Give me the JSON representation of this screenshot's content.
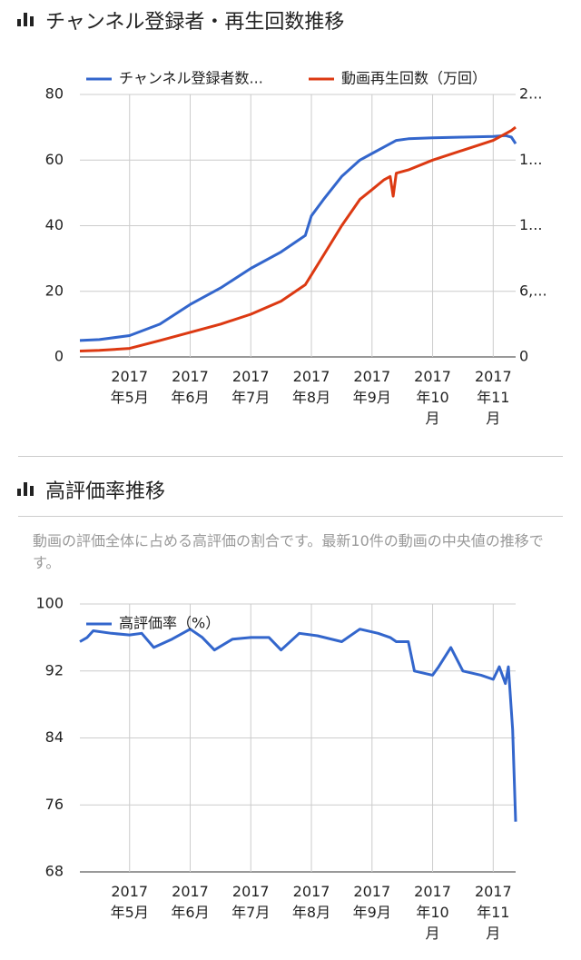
{
  "chart_data": [
    {
      "type": "line",
      "title": "チャンネル登録者・再生回数推移",
      "x": [
        4.18,
        4.5,
        5,
        5.5,
        6,
        6.5,
        7,
        7.5,
        7.9,
        8.0,
        8.2,
        8.5,
        8.8,
        9,
        9.2,
        9.3,
        9.35,
        9.4,
        9.6,
        10,
        10.5,
        11,
        11.2,
        11.3,
        11.37
      ],
      "series": [
        {
          "name": "チャンネル登録者数...",
          "color": "#3366cc",
          "values": [
            5,
            5.3,
            6.5,
            10,
            16,
            21,
            27,
            32,
            37,
            43,
            48,
            55,
            60,
            62,
            64,
            65,
            65.5,
            66,
            66.5,
            66.8,
            67,
            67.2,
            67.5,
            67,
            65
          ]
        },
        {
          "name": "動画再生回数（万回）",
          "color": "#dc3912",
          "axis": "y2",
          "values": [
            540,
            600,
            780,
            1500,
            2250,
            3000,
            3900,
            5100,
            6600,
            7500,
            9300,
            12000,
            14400,
            15300,
            16200,
            16500,
            14700,
            16800,
            17100,
            18000,
            18900,
            19800,
            20400,
            20700,
            21000
          ]
        }
      ],
      "xlim": [
        4.18,
        11.37
      ],
      "xticks": [
        {
          "value": 5,
          "label": "2017 年5月"
        },
        {
          "value": 6,
          "label": "2017 年6月"
        },
        {
          "value": 7,
          "label": "2017 年7月"
        },
        {
          "value": 8,
          "label": "2017 年8月"
        },
        {
          "value": 9,
          "label": "2017 年9月"
        },
        {
          "value": 10,
          "label": "2017 年10月"
        },
        {
          "value": 11,
          "label": "2017 年11月"
        }
      ],
      "ylim": [
        0,
        80
      ],
      "yticks": [
        0,
        20,
        40,
        60,
        80
      ],
      "y2lim": [
        0,
        24000
      ],
      "y2ticks": [
        0,
        {
          "value": 6000,
          "label": "6,..."
        },
        {
          "value": 12000,
          "label": "1..."
        },
        {
          "value": 18000,
          "label": "1..."
        },
        {
          "value": 24000,
          "label": "2..."
        }
      ],
      "grid": true
    },
    {
      "type": "line",
      "title": "高評価率推移",
      "subtitle": "動画の評価全体に占める高評価の割合です。最新10件の動画の中央値の推移です。",
      "x": [
        4.18,
        4.3,
        4.4,
        4.7,
        5,
        5.2,
        5.4,
        5.7,
        6,
        6.2,
        6.4,
        6.7,
        7,
        7.3,
        7.5,
        7.8,
        8.1,
        8.5,
        8.8,
        9.1,
        9.3,
        9.4,
        9.6,
        9.7,
        10,
        10.1,
        10.3,
        10.5,
        10.8,
        11,
        11.1,
        11.2,
        11.25,
        11.32,
        11.37
      ],
      "series": [
        {
          "name": "高評価率（%）",
          "color": "#3366cc",
          "values": [
            95.5,
            96,
            96.8,
            96.5,
            96.3,
            96.5,
            94.8,
            95.8,
            97,
            96,
            94.5,
            95.8,
            96,
            96,
            94.5,
            96.5,
            96.2,
            95.5,
            97,
            96.5,
            96,
            95.5,
            95.5,
            92,
            91.5,
            92.5,
            94.8,
            92,
            91.5,
            91,
            92.5,
            90.5,
            92.5,
            85,
            74
          ]
        }
      ],
      "xlim": [
        4.18,
        11.37
      ],
      "xticks": [
        {
          "value": 5,
          "label": "2017 年5月"
        },
        {
          "value": 6,
          "label": "2017 年6月"
        },
        {
          "value": 7,
          "label": "2017 年7月"
        },
        {
          "value": 8,
          "label": "2017 年8月"
        },
        {
          "value": 9,
          "label": "2017 年9月"
        },
        {
          "value": 10,
          "label": "2017 年10月"
        },
        {
          "value": 11,
          "label": "2017 年11月"
        }
      ],
      "ylim": [
        68,
        100
      ],
      "yticks": [
        68,
        76,
        84,
        92,
        100
      ],
      "grid": true
    }
  ]
}
